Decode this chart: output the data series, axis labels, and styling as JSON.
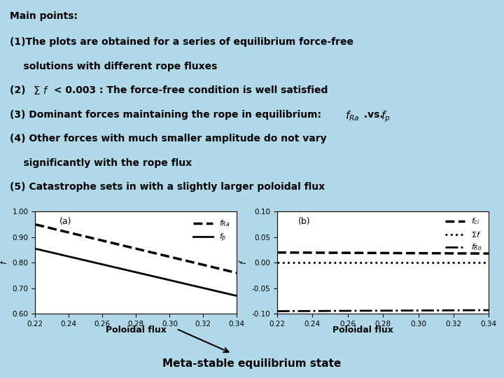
{
  "bg_color": "#b0d8e8",
  "text_color": "#000000",
  "title_lines": [
    "Main points:",
    "(1)The plots are obtained for a series of equilibrium force-free",
    "    solutions with different rope fluxes",
    "(2) ∑f < 0.003 : The force-free condition is well satisfied",
    "(3) Dominant forces maintaining the rope in equilibrium: f_{Ra} .vs. f_p",
    "(4) Other forces with much smaller amplitude do not vary",
    "    significantly with the rope flux",
    "(5) Catastrophe sets in with a slightly larger poloidal flux"
  ],
  "xlabel_a": "Poloidal flux",
  "xlabel_b": "Poloidal flux",
  "ylabel_a": "f",
  "ylabel_b": "f",
  "label_bottom": "Meta-stable equilibrium state",
  "plot_a_label": "(a)",
  "plot_b_label": "(b)",
  "x_range": [
    0.22,
    0.34
  ],
  "x_ticks": [
    0.22,
    0.24,
    0.26,
    0.28,
    0.3,
    0.32,
    0.34
  ],
  "plot_a": {
    "ylim": [
      0.6,
      1.0
    ],
    "yticks": [
      0.6,
      0.7,
      0.8,
      0.9,
      1.0
    ],
    "line_fRa": {
      "x": [
        0.22,
        0.34
      ],
      "y": [
        0.95,
        0.76
      ],
      "style": "--",
      "lw": 2.5,
      "color": "#000000",
      "label": "$f_{Ra}$"
    },
    "line_fp": {
      "x": [
        0.22,
        0.34
      ],
      "y": [
        0.855,
        0.67
      ],
      "style": "-",
      "lw": 2.0,
      "color": "#000000",
      "label": "$f_p$"
    }
  },
  "plot_b": {
    "ylim": [
      -0.1,
      0.1
    ],
    "yticks": [
      -0.1,
      -0.05,
      0.0,
      0.05,
      0.1
    ],
    "line_fci": {
      "x": [
        0.22,
        0.34
      ],
      "y": [
        0.02,
        0.018
      ],
      "style": "--",
      "lw": 2.5,
      "color": "#000000",
      "label": "$f_{ci}$"
    },
    "line_sumf": {
      "x": [
        0.22,
        0.34
      ],
      "y": [
        0.0,
        0.0
      ],
      "style": ":",
      "lw": 2.0,
      "color": "#000000",
      "label": "$\\Sigma f$"
    },
    "line_fRo": {
      "x": [
        0.22,
        0.34
      ],
      "y": [
        -0.095,
        -0.093
      ],
      "style": "-.",
      "lw": 2.0,
      "color": "#000000",
      "label": "$f_{Ro}$"
    }
  }
}
